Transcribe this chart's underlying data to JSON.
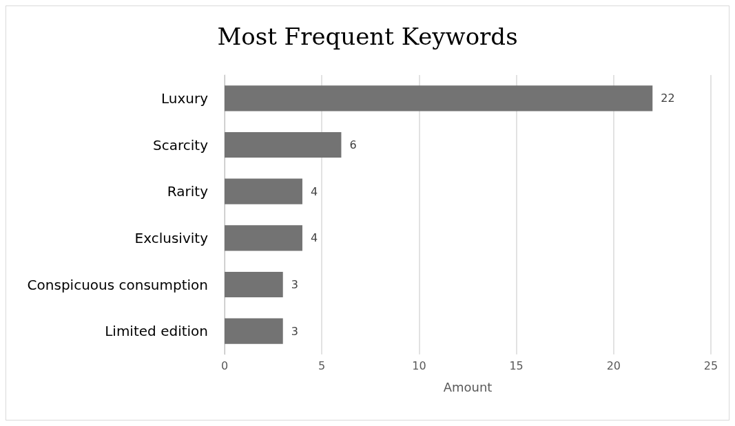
{
  "chart_data": {
    "type": "bar",
    "orientation": "horizontal",
    "title": "Most Frequent Keywords",
    "xlabel": "Amount",
    "categories": [
      "Luxury",
      "Scarcity",
      "Rarity",
      "Exclusivity",
      "Conspicuous consumption",
      "Limited edition"
    ],
    "values": [
      22,
      6,
      4,
      4,
      3,
      3
    ],
    "color": "#737373",
    "xlim": [
      0,
      25
    ],
    "xticks": [
      0,
      5,
      10,
      15,
      20,
      25
    ],
    "grid": "x",
    "data_labels": true
  }
}
